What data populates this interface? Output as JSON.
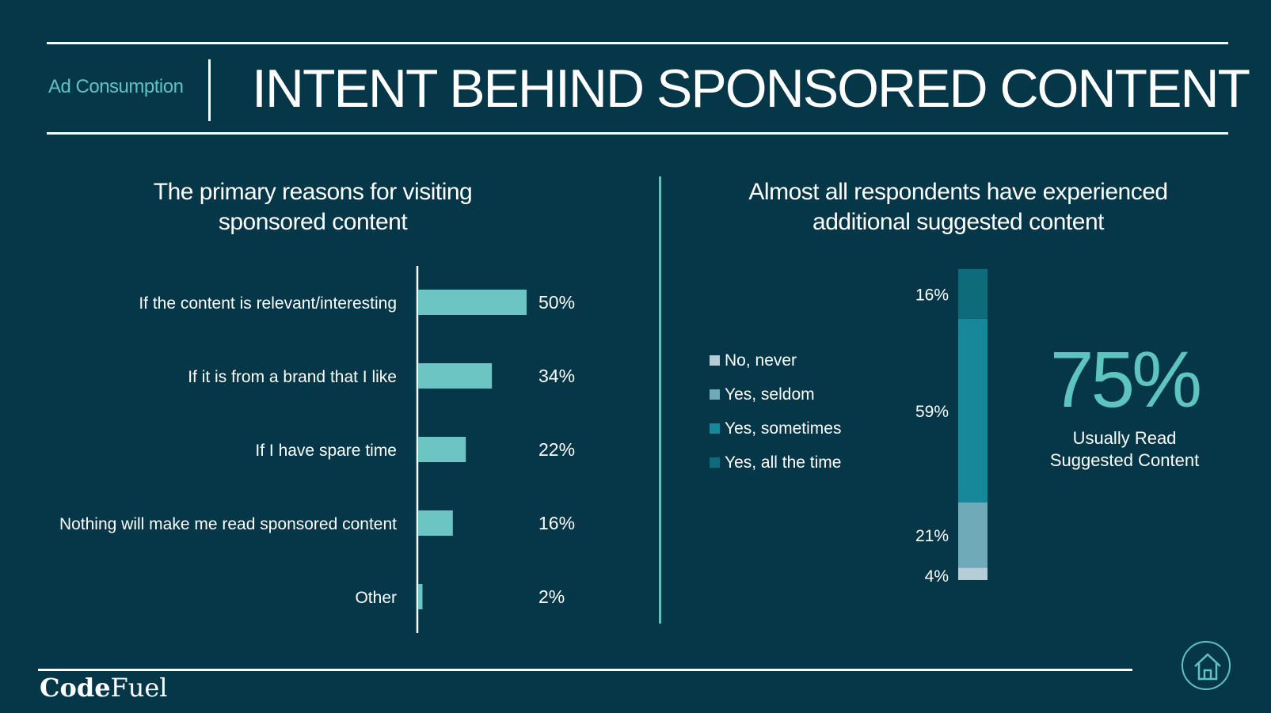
{
  "header": {
    "section_label": "Ad Consumption",
    "title": "INTENT BEHIND SPONSORED CONTENT"
  },
  "left_panel": {
    "subtitle_line1": "The primary reasons for visiting",
    "subtitle_line2": "sponsored content"
  },
  "right_panel": {
    "subtitle_line1": "Almost all respondents have experienced",
    "subtitle_line2": "additional suggested content",
    "big_stat": "75%",
    "big_stat_caption_line1": "Usually Read",
    "big_stat_caption_line2": "Suggested Content"
  },
  "footer": {
    "logo_bold": "Code",
    "logo_regular": "Fuel",
    "home_icon": "home-icon"
  },
  "colors": {
    "background": "#053748",
    "accent": "#5ec4c0",
    "bar": "#6cc5c2"
  },
  "chart_data": [
    {
      "type": "bar",
      "orientation": "horizontal",
      "categories": [
        "If the content is relevant/interesting",
        "If it is from a brand that I like",
        "If I have spare time",
        "Nothing will make me read sponsored content",
        "Other"
      ],
      "values": [
        50,
        34,
        22,
        16,
        2
      ],
      "value_labels": [
        "50%",
        "34%",
        "22%",
        "16%",
        "2%"
      ],
      "unit": "%",
      "xlim": [
        0,
        60
      ],
      "grid": false,
      "color": "#6cc5c2"
    },
    {
      "type": "bar",
      "stacked": true,
      "orientation": "vertical",
      "series": [
        {
          "name": "No, never",
          "value": 4,
          "label": "4%",
          "color": "#b4cdd6"
        },
        {
          "name": "Yes, seldom",
          "value": 21,
          "label": "21%",
          "color": "#70aab9"
        },
        {
          "name": "Yes, sometimes",
          "value": 59,
          "label": "59%",
          "color": "#17879a"
        },
        {
          "name": "Yes, all the time",
          "value": 16,
          "label": "16%",
          "color": "#0e6b7a"
        }
      ],
      "total": 100,
      "legend_position": "left",
      "grid": false
    }
  ]
}
